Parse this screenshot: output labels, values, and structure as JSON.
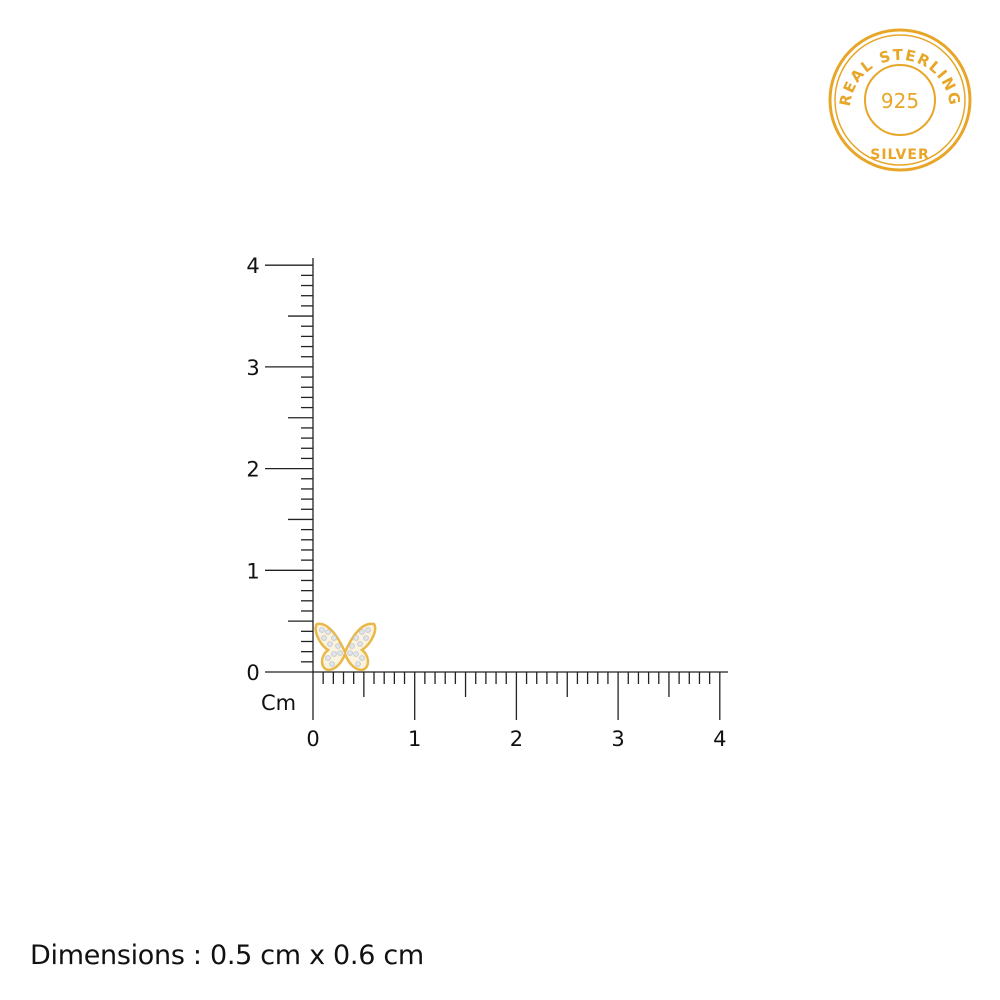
{
  "badge": {
    "top_text": "REAL STERLING",
    "center_text": "925",
    "bottom_text": "SILVER",
    "color": "#E8A628"
  },
  "ruler": {
    "unit_label": "Cm",
    "x_ticks": [
      "0",
      "1",
      "2",
      "3",
      "4"
    ],
    "y_ticks": [
      "0",
      "1",
      "2",
      "3",
      "4"
    ],
    "minor_step_cm": 0.1,
    "line_color": "#222222"
  },
  "product": {
    "name_icon": "butterfly-earring",
    "width_cm": 0.6,
    "height_cm": 0.5,
    "metal_color": "#E8B84A"
  },
  "dimensions_text": "Dimensions : 0.5 cm x 0.6 cm"
}
